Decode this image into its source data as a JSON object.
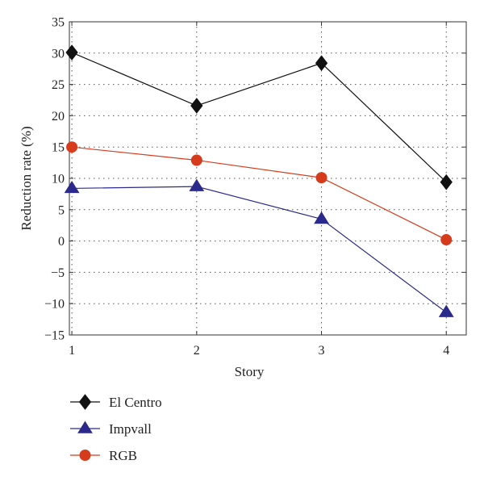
{
  "chart_data": {
    "type": "line",
    "xlabel": "Story",
    "ylabel": "Reduction rate (%)",
    "x": [
      1,
      2,
      3,
      4
    ],
    "xlim": [
      0.98,
      4.16
    ],
    "ylim": [
      -15,
      35
    ],
    "xticks": [
      1,
      2,
      3,
      4
    ],
    "yticks": [
      -15,
      -10,
      -5,
      0,
      5,
      10,
      15,
      20,
      25,
      30,
      35
    ],
    "ytick_labels": [
      "−15",
      "−10",
      "−5",
      "0",
      "5",
      "10",
      "15",
      "20",
      "25",
      "30",
      "35"
    ],
    "grid": true,
    "legend_position": "below",
    "series": [
      {
        "name": "El Centro",
        "values": [
          30.1,
          21.6,
          28.4,
          9.4
        ],
        "color": "#111111",
        "marker": "diamond"
      },
      {
        "name": "Impvall",
        "values": [
          8.4,
          8.7,
          3.5,
          -11.4
        ],
        "color": "#2b2a8c",
        "marker": "triangle"
      },
      {
        "name": "RGB",
        "values": [
          15.0,
          12.9,
          10.1,
          0.2
        ],
        "color": "#d63b1c",
        "marker": "circle"
      }
    ]
  }
}
